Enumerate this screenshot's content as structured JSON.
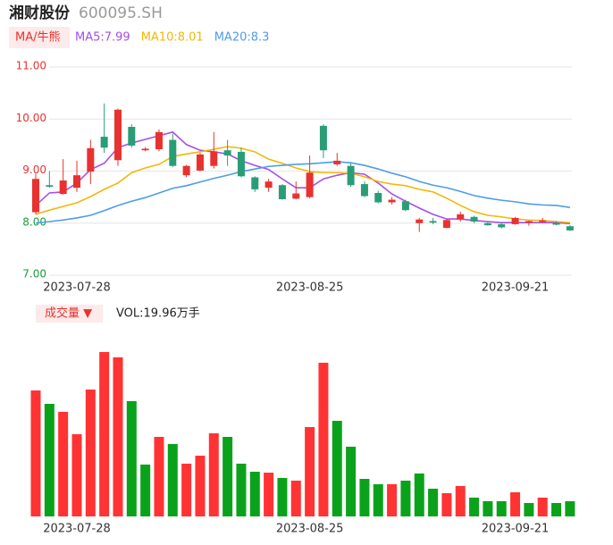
{
  "chart_data": [
    {
      "type": "candlestick",
      "title": "湘财股份",
      "subtitle": "600095.SH",
      "toggle": "MA/牛熊",
      "categories": [
        null,
        null,
        null,
        "2023-07-28",
        null,
        null,
        null,
        null,
        null,
        null,
        null,
        null,
        null,
        null,
        null,
        null,
        null,
        null,
        null,
        null,
        "2023-08-25",
        null,
        null,
        null,
        null,
        null,
        null,
        null,
        null,
        null,
        null,
        null,
        null,
        null,
        null,
        "2023-09-21",
        null,
        null,
        null,
        null
      ],
      "open": [
        8.21,
        8.73,
        8.56,
        8.68,
        8.99,
        9.66,
        9.21,
        9.85,
        9.4,
        9.42,
        9.6,
        8.92,
        9.01,
        9.1,
        9.4,
        9.37,
        8.88,
        8.68,
        8.73,
        8.47,
        8.5,
        9.87,
        9.13,
        9.1,
        8.75,
        8.58,
        8.4,
        8.42,
        8.0,
        8.04,
        7.91,
        8.07,
        8.12,
        8.0,
        7.98,
        7.98,
        8.02,
        8.03,
        8.0,
        7.94
      ],
      "high": [
        8.95,
        9.0,
        9.23,
        9.2,
        9.6,
        10.3,
        10.2,
        9.9,
        9.46,
        9.8,
        9.72,
        9.12,
        9.35,
        9.75,
        9.6,
        9.45,
        8.9,
        8.85,
        8.75,
        8.8,
        9.3,
        9.9,
        9.35,
        9.15,
        8.8,
        8.62,
        8.5,
        8.45,
        8.1,
        8.1,
        8.08,
        8.22,
        8.14,
        8.03,
        8.0,
        8.12,
        8.05,
        8.1,
        8.04,
        7.96
      ],
      "low": [
        8.17,
        8.68,
        8.55,
        8.6,
        8.75,
        9.35,
        9.1,
        9.45,
        9.38,
        9.38,
        9.08,
        8.88,
        9.0,
        9.05,
        9.1,
        8.88,
        8.6,
        8.6,
        8.45,
        8.46,
        8.48,
        9.25,
        9.1,
        8.7,
        8.5,
        8.38,
        8.36,
        8.23,
        7.83,
        7.98,
        7.9,
        8.03,
        8.0,
        7.95,
        7.9,
        7.97,
        7.95,
        8.0,
        7.96,
        7.85
      ],
      "close": [
        8.85,
        8.7,
        8.82,
        8.92,
        9.44,
        9.45,
        10.18,
        9.49,
        9.43,
        9.75,
        9.1,
        9.1,
        9.32,
        9.38,
        9.3,
        8.9,
        8.65,
        8.8,
        8.46,
        8.57,
        8.97,
        9.4,
        9.2,
        8.73,
        8.52,
        8.4,
        8.45,
        8.25,
        8.07,
        8.01,
        8.06,
        8.17,
        8.03,
        7.96,
        7.92,
        8.1,
        8.04,
        8.05,
        7.97,
        7.86
      ],
      "up_color": "#e8322f",
      "down_color": "#2a9d76",
      "series": [
        {
          "name": "MA5:7.99",
          "color": "#a64ee6",
          "values": [
            8.34,
            8.58,
            8.6,
            8.77,
            9.03,
            9.15,
            9.45,
            9.54,
            9.61,
            9.68,
            9.75,
            9.51,
            9.4,
            9.37,
            9.33,
            9.2,
            9.11,
            9.03,
            8.85,
            8.68,
            8.68,
            8.85,
            8.92,
            8.97,
            8.94,
            8.77,
            8.56,
            8.42,
            8.29,
            8.17,
            8.08,
            8.08,
            8.05,
            8.03,
            8.01,
            8.01,
            8.01,
            8.01,
            8.01,
            7.99
          ]
        },
        {
          "name": "MA10:8.01",
          "color": "#f2b807",
          "values": [
            8.17,
            8.25,
            8.32,
            8.39,
            8.51,
            8.65,
            8.77,
            8.97,
            9.06,
            9.13,
            9.28,
            9.33,
            9.37,
            9.42,
            9.47,
            9.44,
            9.37,
            9.23,
            9.15,
            9.06,
            8.99,
            8.97,
            8.97,
            8.96,
            8.89,
            8.8,
            8.75,
            8.72,
            8.65,
            8.6,
            8.48,
            8.34,
            8.22,
            8.15,
            8.12,
            8.08,
            8.06,
            8.05,
            8.03,
            8.01
          ]
        },
        {
          "name": "MA20:8.3",
          "color": "#4e9ce8",
          "values": [
            8.0,
            8.03,
            8.06,
            8.1,
            8.15,
            8.24,
            8.34,
            8.42,
            8.49,
            8.58,
            8.67,
            8.72,
            8.79,
            8.86,
            8.92,
            8.99,
            9.04,
            9.09,
            9.11,
            9.13,
            9.14,
            9.16,
            9.18,
            9.16,
            9.11,
            9.04,
            8.96,
            8.89,
            8.8,
            8.73,
            8.68,
            8.61,
            8.53,
            8.48,
            8.44,
            8.41,
            8.37,
            8.35,
            8.34,
            8.3
          ]
        }
      ],
      "ylim": [
        7,
        11
      ],
      "yticks": [
        {
          "value": 7,
          "label": "7.00"
        },
        {
          "value": 8,
          "label": "8.00"
        },
        {
          "value": 9,
          "label": "9.00"
        },
        {
          "value": 10,
          "label": "10.00"
        },
        {
          "value": 11,
          "label": "11.00"
        }
      ],
      "ytick_colors": [
        "#1a9e3a",
        "#1a9e3a",
        "#e8322f",
        "#e8322f",
        "#e8322f"
      ],
      "grid": true
    },
    {
      "type": "bar",
      "title": "成交量 ▼",
      "legend": "VOL:19.96万手",
      "categories": [
        null,
        null,
        null,
        "2023-07-28",
        null,
        null,
        null,
        null,
        null,
        null,
        null,
        null,
        null,
        null,
        null,
        null,
        null,
        null,
        null,
        null,
        "2023-08-25",
        null,
        null,
        null,
        null,
        null,
        null,
        null,
        null,
        null,
        null,
        null,
        null,
        null,
        null,
        "2023-09-21",
        null,
        null,
        null,
        null
      ],
      "values": [
        165.5,
        147.9,
        137.4,
        108.0,
        166.7,
        216.0,
        209.0,
        151.5,
        68.1,
        104.5,
        95.1,
        69.3,
        79.8,
        109.2,
        104.5,
        69.3,
        58.7,
        57.5,
        50.5,
        47.0,
        117.4,
        201.9,
        125.6,
        91.6,
        49.3,
        42.3,
        42.3,
        47.0,
        56.4,
        36.4,
        30.5,
        39.9,
        24.7,
        20.0,
        20.0,
        31.7,
        17.6,
        24.7,
        17.6,
        19.96
      ],
      "colors": [
        "#ff3333",
        "#0ba21b",
        "#ff3333",
        "#ff3333",
        "#ff3333",
        "#ff3333",
        "#ff3333",
        "#0ba21b",
        "#0ba21b",
        "#ff3333",
        "#0ba21b",
        "#ff3333",
        "#ff3333",
        "#ff3333",
        "#0ba21b",
        "#0ba21b",
        "#0ba21b",
        "#ff3333",
        "#0ba21b",
        "#ff3333",
        "#ff3333",
        "#ff3333",
        "#0ba21b",
        "#0ba21b",
        "#0ba21b",
        "#0ba21b",
        "#ff3333",
        "#0ba21b",
        "#0ba21b",
        "#0ba21b",
        "#ff3333",
        "#ff3333",
        "#0ba21b",
        "#0ba21b",
        "#0ba21b",
        "#ff3333",
        "#0ba21b",
        "#ff3333",
        "#0ba21b",
        "#0ba21b"
      ]
    }
  ]
}
